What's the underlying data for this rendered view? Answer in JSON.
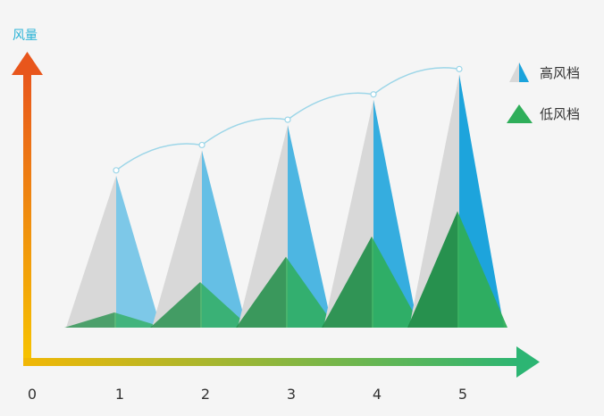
{
  "chart_data": {
    "type": "area",
    "ylabel": "风量",
    "x_ticks": [
      "0",
      "1",
      "2",
      "3",
      "4",
      "5"
    ],
    "categories": [
      1,
      2,
      3,
      4,
      5
    ],
    "series": [
      {
        "name": "高风档",
        "values": [
          30,
          35,
          40,
          45,
          50
        ]
      },
      {
        "name": "低风档",
        "values": [
          3,
          9,
          14,
          18,
          23
        ]
      }
    ],
    "ylim": [
      0,
      55
    ],
    "legend_position": "top-right",
    "grid": false
  },
  "colors": {
    "high_front": "#1aa3dc",
    "high_light": "#8ed3f2",
    "high_back": "#d8d8d8",
    "low_front": "#2fae5a",
    "low_dark": "#1e8d47",
    "y_axis_top": "#e8561c",
    "y_axis_bottom": "#f7c500",
    "x_axis_left": "#f2b705",
    "x_axis_right": "#2cb573",
    "curve": "#9dd6e8",
    "label_blue": "#2bb3d6"
  }
}
